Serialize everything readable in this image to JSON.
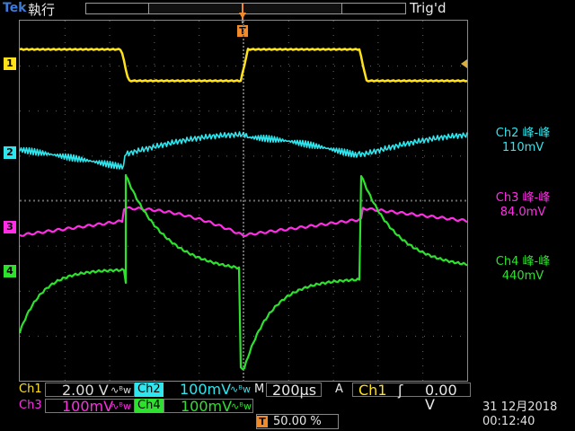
{
  "header": {
    "brand": "Tek",
    "run_state": "執行",
    "trigger_state": "Trig'd"
  },
  "channels": {
    "ch1": {
      "marker": "1",
      "color": "#ffe21a"
    },
    "ch2": {
      "marker": "2",
      "color": "#2ee6ee"
    },
    "ch3": {
      "marker": "3",
      "color": "#ff2ee6"
    },
    "ch4": {
      "marker": "4",
      "color": "#2ee12e"
    }
  },
  "trigger_marker": "T",
  "measurements": [
    {
      "label": "Ch2 峰-峰",
      "value": "110mV",
      "color": "#2ee6ee"
    },
    {
      "label": "Ch3 峰-峰",
      "value": "84.0mV",
      "color": "#ff2ee6"
    },
    {
      "label": "Ch4 峰-峰",
      "value": "440mV",
      "color": "#2ee12e"
    }
  ],
  "settings": {
    "ch1_label": "Ch1",
    "ch1_scale": "2.00 V",
    "ch2_label": "Ch2",
    "ch2_scale": "100mV",
    "ch3_label": "Ch3",
    "ch3_scale": "100mV",
    "ch4_label": "Ch4",
    "ch4_scale": "100mV",
    "coupling_symbol": "∿ᴮw",
    "timebase_label": "M",
    "timebase_value": "200µs",
    "acq_mode": "A",
    "trigger_source": "Ch1",
    "trigger_slope": "ʃ",
    "trigger_level": "0.00 V",
    "trigger_position": "50.00 %"
  },
  "datetime": {
    "date": "31 12月2018",
    "time": "00:12:40"
  }
}
